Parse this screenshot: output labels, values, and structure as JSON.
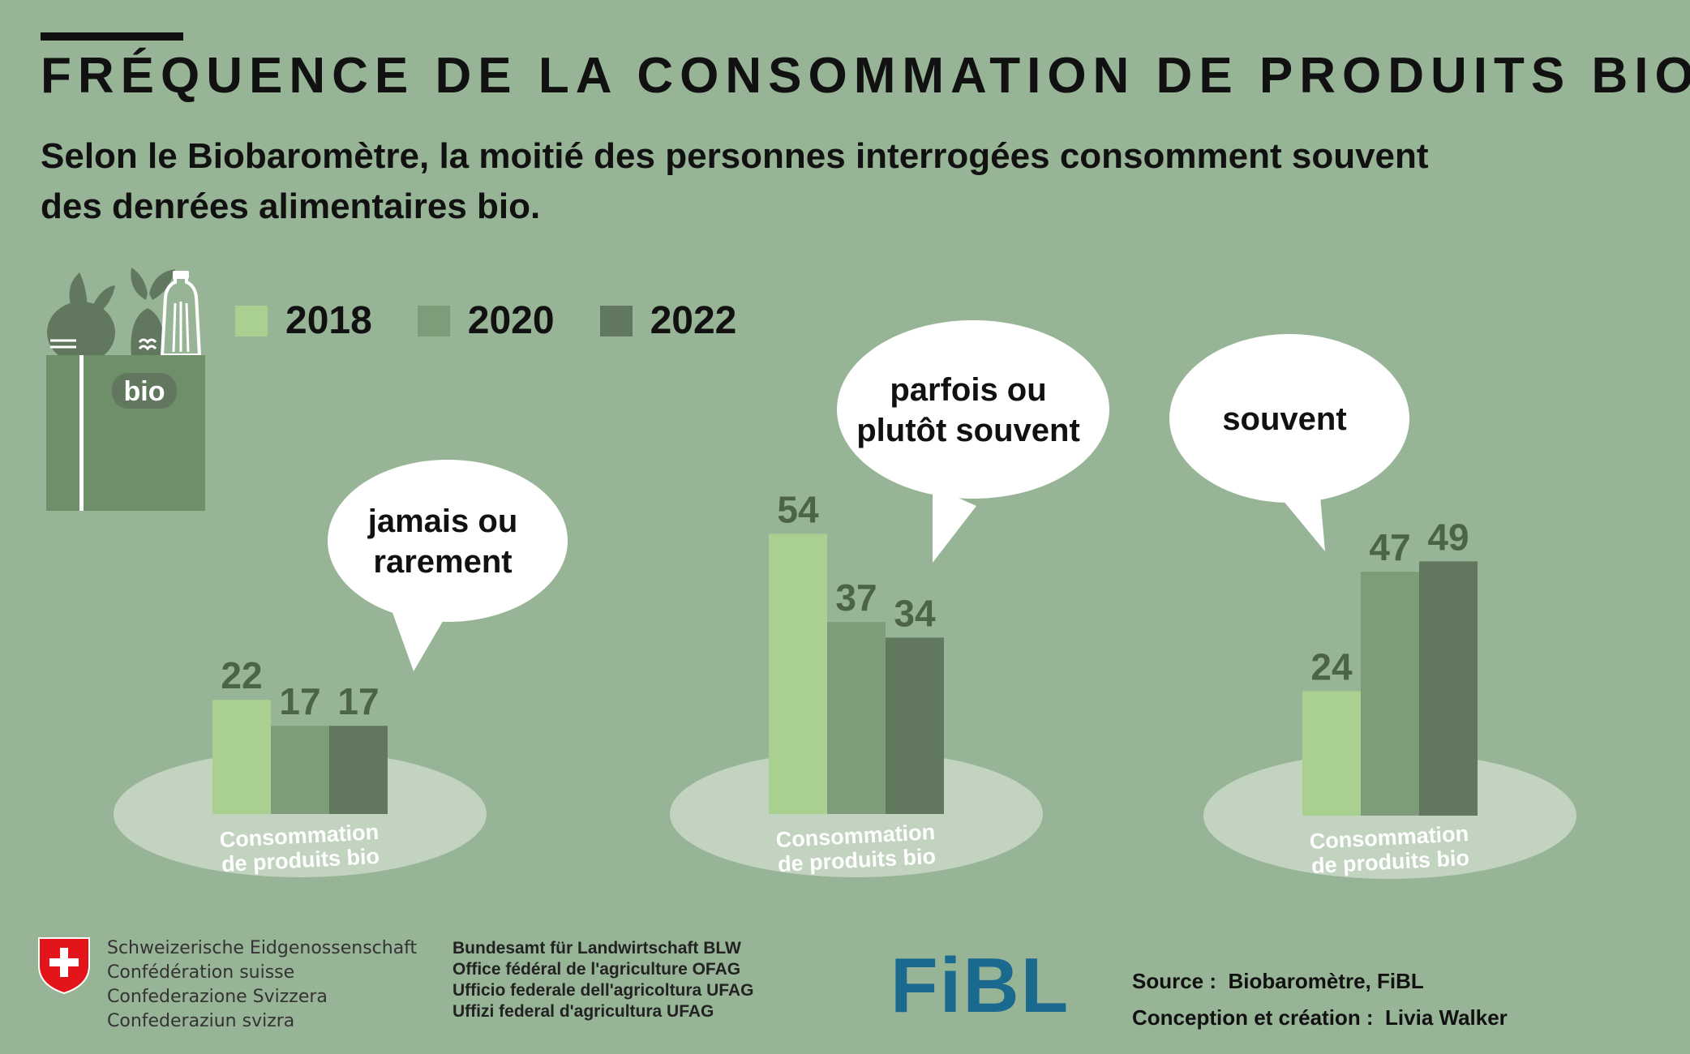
{
  "title": "FRÉQUENCE DE LA CONSOMMATION DE PRODUITS BIO",
  "subtitle_line1": "Selon le Biobaromètre, la moitié des personnes interrogées consomment souvent",
  "subtitle_line2": "des denrées alimentaires bio.",
  "bag_label": "bio",
  "colors": {
    "background": "#98b497",
    "series_2018": "#a9d091",
    "series_2020": "#7e9c79",
    "series_2022": "#61785f",
    "platform": "#c2d3c0",
    "value_text": "#4c6348",
    "bag": "#6f8e6a"
  },
  "chart_data": {
    "type": "bar",
    "categories": [
      "jamais ou rarement",
      "parfois ou plutôt souvent",
      "souvent"
    ],
    "series": [
      {
        "name": "2018",
        "values": [
          22,
          54,
          24
        ]
      },
      {
        "name": "2020",
        "values": [
          17,
          37,
          47
        ]
      },
      {
        "name": "2022",
        "values": [
          17,
          34,
          49
        ]
      }
    ],
    "category_bubbles": [
      [
        "jamais ou",
        "rarement"
      ],
      [
        "parfois ou",
        "plutôt souvent"
      ],
      [
        "souvent"
      ]
    ],
    "platform_label": [
      "Consommation",
      "de produits bio"
    ],
    "legend_position": "top-left"
  },
  "footer": {
    "federation": [
      "Schweizerische Eidgenossenschaft",
      "Confédération suisse",
      "Confederazione Svizzera",
      "Confederaziun svizra"
    ],
    "office": [
      "Bundesamt für Landwirtschaft BLW",
      "Office fédéral de l'agriculture OFAG",
      "Ufficio federale dell'agricoltura UFAG",
      "Uffizi federal d'agricultura UFAG"
    ],
    "fibl_logo": "FiBL",
    "source_label": "Source :",
    "source_value": "Biobaromètre, FiBL",
    "design_label": "Conception et création :",
    "design_value": "Livia Walker"
  },
  "icons": [
    "organic-bag-icon",
    "swiss-cross-icon"
  ]
}
